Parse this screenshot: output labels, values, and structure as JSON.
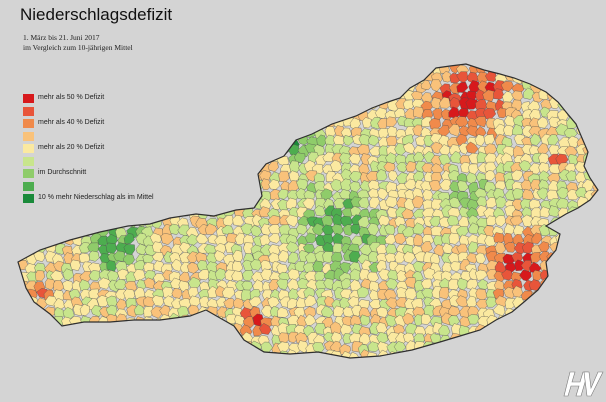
{
  "title": "Niederschlagsdefizit",
  "subtitle": {
    "line1": "1. März bis 21. Juni 2017",
    "line2": "im Vergleich zum 10-jährigen Mittel"
  },
  "legend": [
    {
      "label": "mehr als 50 % Defizit",
      "color": "#d7191c"
    },
    {
      "label": "",
      "color": "#e8553a"
    },
    {
      "label": "mehr als 40 % Defizit",
      "color": "#f08a4b"
    },
    {
      "label": "",
      "color": "#f9c27a"
    },
    {
      "label": "mehr als 20 % Defizit",
      "color": "#fbe9a0"
    },
    {
      "label": "",
      "color": "#c8e58c"
    },
    {
      "label": "im Durchschnitt",
      "color": "#8fcc6a"
    },
    {
      "label": "",
      "color": "#4dad4f"
    },
    {
      "label": "10 % mehr Niederschlag als im Mittel",
      "color": "#1a8a3a"
    }
  ],
  "logo": {
    "text": "HV"
  }
}
